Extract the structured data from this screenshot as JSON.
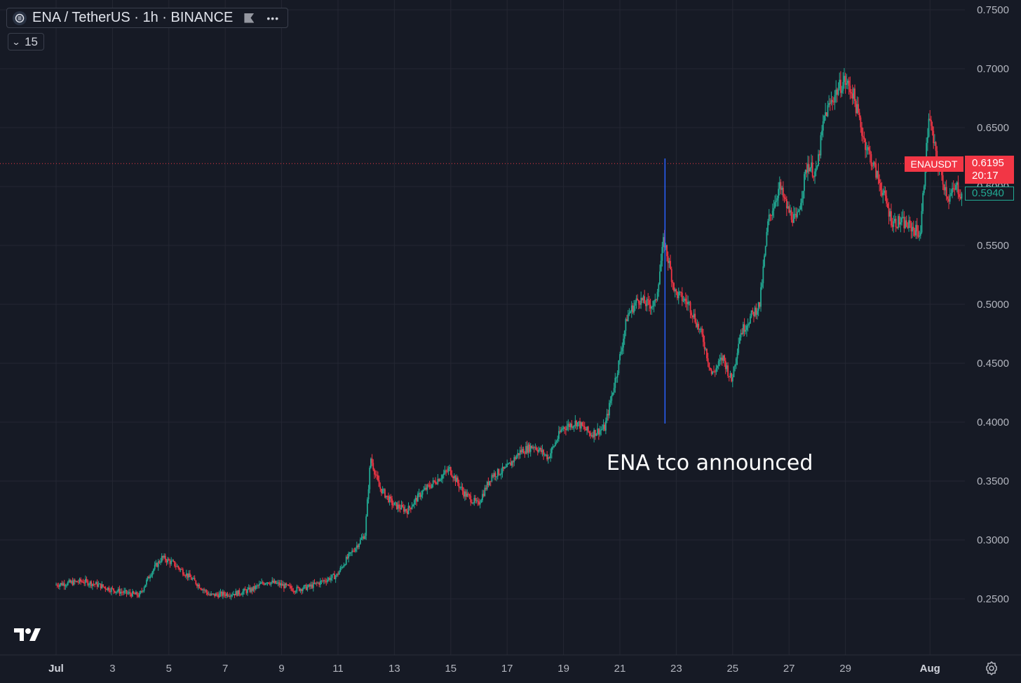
{
  "legend": {
    "title": "ENA / TetherUS · 1h · BINANCE",
    "interval_count": "15",
    "logo_icon": "ethena-logo-icon",
    "menu_icon": "more-dots-icon",
    "flag_icon": "flag-icon"
  },
  "annotation": {
    "text": "ENA tco announced",
    "line_color": "#2962ff"
  },
  "price_badges": {
    "symbol": "ENAUSDT",
    "last_price": "0.6195",
    "countdown": "20:17",
    "secondary_price": "0.5940"
  },
  "colors": {
    "up": "#22ab94",
    "down": "#f23645",
    "background": "#161a25",
    "grid": "#242733",
    "axis_text": "#b2b5be"
  },
  "y_axis": {
    "labels": [
      "0.7500",
      "0.7000",
      "0.6500",
      "0.6000",
      "0.5500",
      "0.5000",
      "0.4500",
      "0.4000",
      "0.3500",
      "0.3000",
      "0.2500"
    ],
    "values": [
      0.75,
      0.7,
      0.65,
      0.6,
      0.55,
      0.5,
      0.45,
      0.4,
      0.35,
      0.3,
      0.25
    ]
  },
  "x_axis": {
    "labels": [
      "Jul",
      "3",
      "5",
      "7",
      "9",
      "11",
      "13",
      "15",
      "17",
      "19",
      "21",
      "23",
      "25",
      "27",
      "29",
      "Aug"
    ],
    "bold": [
      "Jul",
      "Aug"
    ]
  },
  "chart_data": {
    "type": "candlestick",
    "symbol": "ENA / TetherUS",
    "interval": "1h",
    "exchange": "BINANCE",
    "ylim": [
      0.21,
      0.75
    ],
    "x_dates": [
      "Jul 1",
      "Jul 3",
      "Jul 5",
      "Jul 7",
      "Jul 9",
      "Jul 11",
      "Jul 13",
      "Jul 15",
      "Jul 17",
      "Jul 19",
      "Jul 21",
      "Jul 23",
      "Jul 25",
      "Jul 27",
      "Jul 29",
      "Aug 1"
    ],
    "price_path": {
      "x_day": [
        0,
        1,
        1.5,
        2,
        2.5,
        3,
        3.4,
        3.8,
        4.2,
        4.8,
        5.5,
        6.5,
        7,
        7.5,
        8,
        8.5,
        9,
        9.5,
        10,
        10.3,
        10.7,
        11,
        11.2,
        11.5,
        12,
        12.5,
        13,
        13.5,
        14,
        14.5,
        15,
        15.5,
        16,
        16.5,
        17,
        17.5,
        18,
        18.5,
        19,
        19.5,
        20,
        20.3,
        20.7,
        21,
        21.3,
        21.6,
        22,
        22.5,
        23,
        23.3,
        23.7,
        24,
        24.3,
        24.7,
        25,
        25.3,
        25.7,
        26,
        26.3,
        26.7,
        27,
        27.3,
        27.7,
        28,
        28.3,
        28.7,
        29,
        29.3,
        29.7,
        30,
        30.4,
        30.7,
        31,
        31.3,
        31.7,
        32,
        32.2
      ],
      "price": [
        0.262,
        0.265,
        0.262,
        0.258,
        0.255,
        0.253,
        0.272,
        0.285,
        0.28,
        0.268,
        0.253,
        0.255,
        0.258,
        0.265,
        0.262,
        0.258,
        0.26,
        0.265,
        0.27,
        0.282,
        0.295,
        0.305,
        0.37,
        0.345,
        0.33,
        0.325,
        0.34,
        0.35,
        0.36,
        0.34,
        0.33,
        0.355,
        0.36,
        0.375,
        0.38,
        0.37,
        0.395,
        0.4,
        0.39,
        0.395,
        0.45,
        0.49,
        0.505,
        0.5,
        0.5,
        0.555,
        0.51,
        0.5,
        0.47,
        0.44,
        0.455,
        0.435,
        0.475,
        0.49,
        0.5,
        0.57,
        0.6,
        0.58,
        0.57,
        0.62,
        0.61,
        0.66,
        0.68,
        0.69,
        0.68,
        0.64,
        0.62,
        0.6,
        0.57,
        0.57,
        0.565,
        0.56,
        0.66,
        0.62,
        0.59,
        0.6,
        0.59
      ]
    },
    "vertical_marker_x_day": 21.6,
    "last_price": 0.6195
  }
}
